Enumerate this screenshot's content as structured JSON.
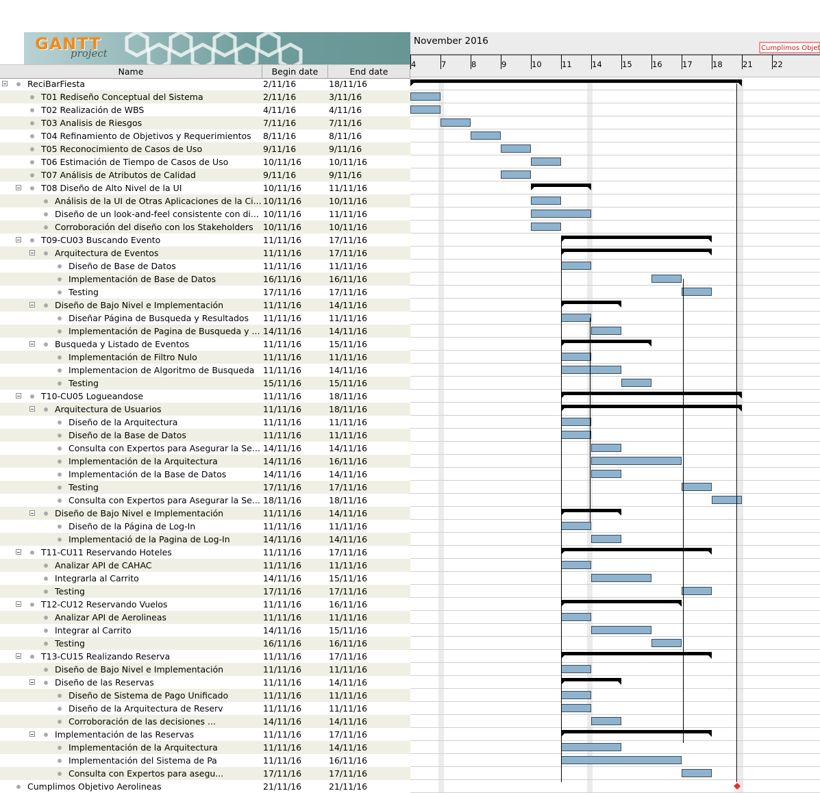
{
  "app": {
    "logo_text": "GANTT",
    "logo_sub": "project"
  },
  "table": {
    "headers": {
      "name": "Name",
      "begin": "Begin date",
      "end": "End date"
    },
    "rows": [
      {
        "level": 0,
        "expander": true,
        "name": "ReciBarFiesta",
        "begin": "2/11/16",
        "end": "18/11/16"
      },
      {
        "level": 1,
        "expander": false,
        "name": "T01 Rediseño Conceptual del Sistema",
        "begin": "2/11/16",
        "end": "3/11/16"
      },
      {
        "level": 1,
        "expander": false,
        "name": "T02 Realización de WBS",
        "begin": "4/11/16",
        "end": "4/11/16"
      },
      {
        "level": 1,
        "expander": false,
        "name": "T03 Analisis de Riesgos",
        "begin": "7/11/16",
        "end": "7/11/16"
      },
      {
        "level": 1,
        "expander": false,
        "name": "T04 Refinamiento de Objetivos y Requerimientos",
        "begin": "8/11/16",
        "end": "8/11/16"
      },
      {
        "level": 1,
        "expander": false,
        "name": "T05 Reconocimiento de Casos de Uso",
        "begin": "9/11/16",
        "end": "9/11/16"
      },
      {
        "level": 1,
        "expander": false,
        "name": "T06 Estimación de Tiempo de Casos de Uso",
        "begin": "10/11/16",
        "end": "10/11/16"
      },
      {
        "level": 1,
        "expander": false,
        "name": "T07 Análisis de Atributos de Calidad",
        "begin": "9/11/16",
        "end": "9/11/16"
      },
      {
        "level": 1,
        "expander": true,
        "name": "T08 Diseño de Alto Nivel de la UI",
        "begin": "10/11/16",
        "end": "11/11/16"
      },
      {
        "level": 2,
        "expander": false,
        "name": "Análisis de la UI de Otras Aplicaciones de la Ci...",
        "begin": "10/11/16",
        "end": "10/11/16"
      },
      {
        "level": 2,
        "expander": false,
        "name": "Diseño de un look-and-feel consistente con di...",
        "begin": "10/11/16",
        "end": "11/11/16"
      },
      {
        "level": 2,
        "expander": false,
        "name": "Corroboración del diseño con los Stakeholders",
        "begin": "10/11/16",
        "end": "10/11/16"
      },
      {
        "level": 1,
        "expander": true,
        "name": "T09-CU03 Buscando Evento",
        "begin": "11/11/16",
        "end": "17/11/16"
      },
      {
        "level": 2,
        "expander": true,
        "name": "Arquitectura de Eventos",
        "begin": "11/11/16",
        "end": "17/11/16"
      },
      {
        "level": 3,
        "expander": false,
        "name": "Diseño de Base de Datos",
        "begin": "11/11/16",
        "end": "11/11/16"
      },
      {
        "level": 3,
        "expander": false,
        "name": "Implementación de Base de Datos",
        "begin": "16/11/16",
        "end": "16/11/16"
      },
      {
        "level": 3,
        "expander": false,
        "name": "Testing",
        "begin": "17/11/16",
        "end": "17/11/16"
      },
      {
        "level": 2,
        "expander": true,
        "name": "Diseño de Bajo Nivel e Implementación",
        "begin": "11/11/16",
        "end": "14/11/16"
      },
      {
        "level": 3,
        "expander": false,
        "name": "Diseñar Página de Busqueda y Resultados",
        "begin": "11/11/16",
        "end": "11/11/16"
      },
      {
        "level": 3,
        "expander": false,
        "name": "Implementación de Pagina de Busqueda y ...",
        "begin": "14/11/16",
        "end": "14/11/16"
      },
      {
        "level": 2,
        "expander": true,
        "name": "Busqueda y Listado de Eventos",
        "begin": "11/11/16",
        "end": "15/11/16"
      },
      {
        "level": 3,
        "expander": false,
        "name": "Implementación de Filtro Nulo",
        "begin": "11/11/16",
        "end": "11/11/16"
      },
      {
        "level": 3,
        "expander": false,
        "name": "Implementacion de Algoritmo de Busqueda",
        "begin": "11/11/16",
        "end": "14/11/16"
      },
      {
        "level": 3,
        "expander": false,
        "name": "Testing",
        "begin": "15/11/16",
        "end": "15/11/16"
      },
      {
        "level": 1,
        "expander": true,
        "name": "T10-CU05 Logueandose",
        "begin": "11/11/16",
        "end": "18/11/16"
      },
      {
        "level": 2,
        "expander": true,
        "name": "Arquitectura de Usuarios",
        "begin": "11/11/16",
        "end": "18/11/16"
      },
      {
        "level": 3,
        "expander": false,
        "name": "Diseño de la Arquitectura",
        "begin": "11/11/16",
        "end": "11/11/16"
      },
      {
        "level": 3,
        "expander": false,
        "name": "Diseño de la Base de Datos",
        "begin": "11/11/16",
        "end": "11/11/16"
      },
      {
        "level": 3,
        "expander": false,
        "name": "Consulta con Expertos para Asegurar la Se...",
        "begin": "14/11/16",
        "end": "14/11/16"
      },
      {
        "level": 3,
        "expander": false,
        "name": "Implementación de la Arquitectura",
        "begin": "14/11/16",
        "end": "16/11/16"
      },
      {
        "level": 3,
        "expander": false,
        "name": "Implementación de la Base de Datos",
        "begin": "14/11/16",
        "end": "14/11/16"
      },
      {
        "level": 3,
        "expander": false,
        "name": "Testing",
        "begin": "17/11/16",
        "end": "17/11/16"
      },
      {
        "level": 3,
        "expander": false,
        "name": "Consulta con Expertos para Asegurar la Se...",
        "begin": "18/11/16",
        "end": "18/11/16"
      },
      {
        "level": 2,
        "expander": true,
        "name": "Diseño de Bajo Nivel e Implementación",
        "begin": "11/11/16",
        "end": "14/11/16"
      },
      {
        "level": 3,
        "expander": false,
        "name": "Diseño de la Página de Log-In",
        "begin": "11/11/16",
        "end": "11/11/16"
      },
      {
        "level": 3,
        "expander": false,
        "name": "Implementació de la Pagina de Log-In",
        "begin": "14/11/16",
        "end": "14/11/16"
      },
      {
        "level": 1,
        "expander": true,
        "name": "T11-CU11 Reservando Hoteles",
        "begin": "11/11/16",
        "end": "17/11/16"
      },
      {
        "level": 2,
        "expander": false,
        "name": "Analizar API de CAHAC",
        "begin": "11/11/16",
        "end": "11/11/16"
      },
      {
        "level": 2,
        "expander": false,
        "name": "Integrarla al Carrito",
        "begin": "14/11/16",
        "end": "15/11/16"
      },
      {
        "level": 2,
        "expander": false,
        "name": "Testing",
        "begin": "17/11/16",
        "end": "17/11/16"
      },
      {
        "level": 1,
        "expander": true,
        "name": "T12-CU12 Reservando Vuelos",
        "begin": "11/11/16",
        "end": "16/11/16"
      },
      {
        "level": 2,
        "expander": false,
        "name": "Analizar API de Aerolineas",
        "begin": "11/11/16",
        "end": "11/11/16"
      },
      {
        "level": 2,
        "expander": false,
        "name": "Integrar al Carrito",
        "begin": "14/11/16",
        "end": "15/11/16"
      },
      {
        "level": 2,
        "expander": false,
        "name": "Testing",
        "begin": "16/11/16",
        "end": "16/11/16"
      },
      {
        "level": 1,
        "expander": true,
        "name": "T13-CU15 Realizando Reserva",
        "begin": "11/11/16",
        "end": "17/11/16"
      },
      {
        "level": 2,
        "expander": false,
        "name": "Diseño de Bajo Nivel e Implementación",
        "begin": "11/11/16",
        "end": "11/11/16"
      },
      {
        "level": 2,
        "expander": true,
        "name": "Diseño de las Reservas",
        "begin": "11/11/16",
        "end": "14/11/16"
      },
      {
        "level": 3,
        "expander": false,
        "name": "Diseño de Sistema de Pago Unificado",
        "begin": "11/11/16",
        "end": "11/11/16"
      },
      {
        "level": 3,
        "expander": false,
        "name": "Diseño de la Arquitectura de Reserv",
        "begin": "11/11/16",
        "end": "11/11/16"
      },
      {
        "level": 3,
        "expander": false,
        "name": "Corroboración de las decisiones ...",
        "begin": "14/11/16",
        "end": "14/11/16"
      },
      {
        "level": 2,
        "expander": true,
        "name": "Implementación de las Reservas",
        "begin": "11/11/16",
        "end": "17/11/16"
      },
      {
        "level": 3,
        "expander": false,
        "name": "Implementación de la Arquitectura",
        "begin": "11/11/16",
        "end": "14/11/16"
      },
      {
        "level": 3,
        "expander": false,
        "name": "Implementación del Sistema de Pa",
        "begin": "11/11/16",
        "end": "16/11/16"
      },
      {
        "level": 3,
        "expander": false,
        "name": "Consulta con Expertos para asegu...",
        "begin": "17/11/16",
        "end": "17/11/16"
      },
      {
        "level": 0,
        "expander": false,
        "name": "Cumplimos Objetivo Aerolineas",
        "begin": "21/11/16",
        "end": "21/11/16"
      }
    ]
  },
  "timeline": {
    "month_label": "November 2016",
    "day_labels": [
      "4",
      "7",
      "8",
      "9",
      "10",
      "11",
      "14",
      "15",
      "16",
      "17",
      "18",
      "21",
      "22"
    ],
    "milestone_label": "Cumplimos Objetivo Aerolineas",
    "colors": {
      "task_fill": "#8eb3cf",
      "task_border": "#3e4b57",
      "summary": "#000000",
      "milestone": "#e8302f",
      "weekend": "#ebebeb"
    }
  }
}
